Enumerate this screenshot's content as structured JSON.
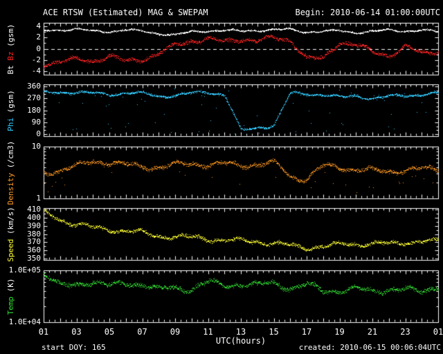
{
  "header": {
    "title": "ACE RTSW (Estimated) MAG & SWEPAM",
    "begin": "Begin: 2010-06-14 01:00:00UTC"
  },
  "footer": {
    "start_doy": "start DOY: 165",
    "created": "created: 2010-06-15 00:06:04UTC"
  },
  "colors": {
    "background": "#000000",
    "frame": "#ffffff",
    "bt": "#ffffff",
    "bz": "#ff2222",
    "phi": "#33ccff",
    "density": "#ff9922",
    "speed": "#ffff33",
    "temp": "#33dd33"
  },
  "chart_data": {
    "type": "scatter",
    "title": "ACE RTSW (Estimated) MAG & SWEPAM",
    "x_label": "UTC(hours)",
    "x_range": [
      1,
      25
    ],
    "x_hours": [
      1,
      2,
      3,
      4,
      5,
      6,
      7,
      8,
      9,
      10,
      11,
      12,
      13,
      14,
      15,
      16,
      17,
      18,
      19,
      20,
      21,
      22,
      23,
      24,
      25
    ],
    "x_tick_labels": [
      {
        "h": 1,
        "t": "01"
      },
      {
        "h": 3,
        "t": "03"
      },
      {
        "h": 5,
        "t": "05"
      },
      {
        "h": 7,
        "t": "07"
      },
      {
        "h": 9,
        "t": "09"
      },
      {
        "h": 11,
        "t": "11"
      },
      {
        "h": 13,
        "t": "13"
      },
      {
        "h": 15,
        "t": "15"
      },
      {
        "h": 17,
        "t": "17"
      },
      {
        "h": 19,
        "t": "19"
      },
      {
        "h": 21,
        "t": "21"
      },
      {
        "h": 23,
        "t": "23"
      },
      {
        "h": 25,
        "t": "01"
      }
    ],
    "legend_position": "left-rotated",
    "grid": false,
    "panels": [
      {
        "id": "mag",
        "axis_label_parts": [
          {
            "text": "Bt",
            "color_key": "bt"
          },
          {
            "text": "Bz",
            "color_key": "bz"
          },
          {
            "text": "(gsm)",
            "color_key": "frame"
          }
        ],
        "scale": "linear",
        "y_range": [
          -4.6,
          4.6
        ],
        "y_ticks": [
          {
            "v": 4,
            "label": "4"
          },
          {
            "v": 2,
            "label": "2"
          },
          {
            "v": 0,
            "label": "0"
          },
          {
            "v": -2,
            "label": "-2"
          },
          {
            "v": -4,
            "label": "-4"
          }
        ],
        "y_minor": [
          -3,
          -1,
          1,
          3
        ],
        "zero_dashed_line": true,
        "series": [
          {
            "name": "Bt",
            "color_key": "bt",
            "jitter": 0.16,
            "values": [
              3.3,
              3.4,
              3.5,
              3.2,
              3.1,
              3.4,
              3.2,
              2.7,
              2.5,
              3.1,
              3.2,
              3.3,
              3.2,
              3.3,
              3.4,
              3.5,
              3.0,
              3.1,
              3.3,
              2.9,
              3.1,
              3.4,
              3.2,
              3.3,
              3.1
            ]
          },
          {
            "name": "Bz",
            "color_key": "bz",
            "jitter": 0.38,
            "values": [
              -2.6,
              -2.3,
              -1.9,
              -2.1,
              -1.3,
              -2.2,
              -1.8,
              -0.8,
              0.6,
              1.5,
              1.8,
              1.2,
              1.8,
              1.5,
              1.9,
              1.6,
              -1.6,
              -1.8,
              1.3,
              0.8,
              -0.6,
              -1.2,
              0.5,
              -0.9,
              -0.3
            ]
          }
        ]
      },
      {
        "id": "phi",
        "axis_label_parts": [
          {
            "text": "Phi",
            "color_key": "phi"
          },
          {
            "text": "(gsm)",
            "color_key": "frame"
          }
        ],
        "scale": "linear",
        "y_range": [
          -15,
          375
        ],
        "y_ticks": [
          {
            "v": 360,
            "label": "360"
          },
          {
            "v": 270,
            "label": "270"
          },
          {
            "v": 180,
            "label": "180"
          },
          {
            "v": 90,
            "label": "90"
          },
          {
            "v": 0,
            "label": "0"
          }
        ],
        "y_minor": [
          30,
          60,
          120,
          150,
          210,
          240,
          300,
          330
        ],
        "zero_dashed_line": false,
        "series": [
          {
            "name": "Phi",
            "color_key": "phi",
            "jitter": 10,
            "wrap360": true,
            "outlier_rate": 0.04,
            "outlier_range": [
              0,
              360
            ],
            "values": [
              310,
              315,
              320,
              310,
              300,
              315,
              310,
              285,
              295,
              310,
              318,
              300,
              30,
              50,
              70,
              310,
              305,
              300,
              280,
              292,
              270,
              285,
              295,
              300,
              310
            ]
          }
        ]
      },
      {
        "id": "density",
        "axis_label_parts": [
          {
            "text": "Density",
            "color_key": "density"
          },
          {
            "text": "(/cm3)",
            "color_key": "frame"
          }
        ],
        "scale": "log",
        "y_range": [
          1,
          10
        ],
        "y_ticks": [
          {
            "v": 10,
            "label": "10"
          },
          {
            "v": 1,
            "label": "1"
          }
        ],
        "y_minor": [
          2,
          3,
          4,
          5,
          6,
          7,
          8,
          9
        ],
        "zero_dashed_line": false,
        "series": [
          {
            "name": "Density",
            "color_key": "density",
            "jitter_dex": 0.045,
            "outlier_rate": 0.02,
            "outlier_dex": -0.28,
            "values": [
              3.2,
              3.5,
              4.2,
              5.3,
              4.9,
              4.5,
              4.2,
              4.0,
              4.5,
              4.8,
              4.5,
              4.7,
              4.4,
              4.6,
              4.9,
              2.6,
              2.4,
              4.3,
              4.0,
              3.7,
              3.5,
              3.3,
              3.6,
              3.8,
              3.6
            ]
          }
        ]
      },
      {
        "id": "speed",
        "axis_label_parts": [
          {
            "text": "Speed",
            "color_key": "speed"
          },
          {
            "text": "(km/s)",
            "color_key": "frame"
          }
        ],
        "scale": "linear",
        "y_range": [
          348,
          412
        ],
        "y_ticks": [
          {
            "v": 410,
            "label": "410"
          },
          {
            "v": 400,
            "label": "400"
          },
          {
            "v": 390,
            "label": "390"
          },
          {
            "v": 380,
            "label": "380"
          },
          {
            "v": 370,
            "label": "370"
          },
          {
            "v": 360,
            "label": "360"
          },
          {
            "v": 350,
            "label": "350"
          }
        ],
        "y_minor": [
          355,
          365,
          375,
          385,
          395,
          405
        ],
        "zero_dashed_line": false,
        "series": [
          {
            "name": "Speed",
            "color_key": "speed",
            "jitter": 2.6,
            "values": [
              408,
              398,
              392,
              388,
              386,
              384,
              382,
              378,
              377,
              376,
              374,
              373,
              372,
              371,
              369,
              366,
              363,
              365,
              367,
              368,
              369,
              368,
              370,
              372,
              371
            ]
          }
        ]
      },
      {
        "id": "temp",
        "axis_label_parts": [
          {
            "text": "Temp",
            "color_key": "temp"
          },
          {
            "text": "(K)",
            "color_key": "frame"
          }
        ],
        "scale": "log",
        "y_range": [
          10000,
          100000
        ],
        "y_ticks": [
          {
            "v": 100000,
            "label": "1.0E+05"
          },
          {
            "v": 10000,
            "label": "1.0E+04"
          }
        ],
        "y_minor": [
          20000,
          30000,
          40000,
          50000,
          60000,
          70000,
          80000,
          90000
        ],
        "zero_dashed_line": false,
        "series": [
          {
            "name": "Temp",
            "color_key": "temp",
            "jitter_dex": 0.05,
            "values": [
              90000,
              50000,
              52000,
              63000,
              50000,
              56000,
              56000,
              43000,
              46000,
              44000,
              60000,
              50000,
              56000,
              52000,
              58000,
              46000,
              54000,
              40000,
              42000,
              44000,
              40000,
              44000,
              42000,
              40000,
              50000
            ]
          }
        ]
      }
    ]
  }
}
